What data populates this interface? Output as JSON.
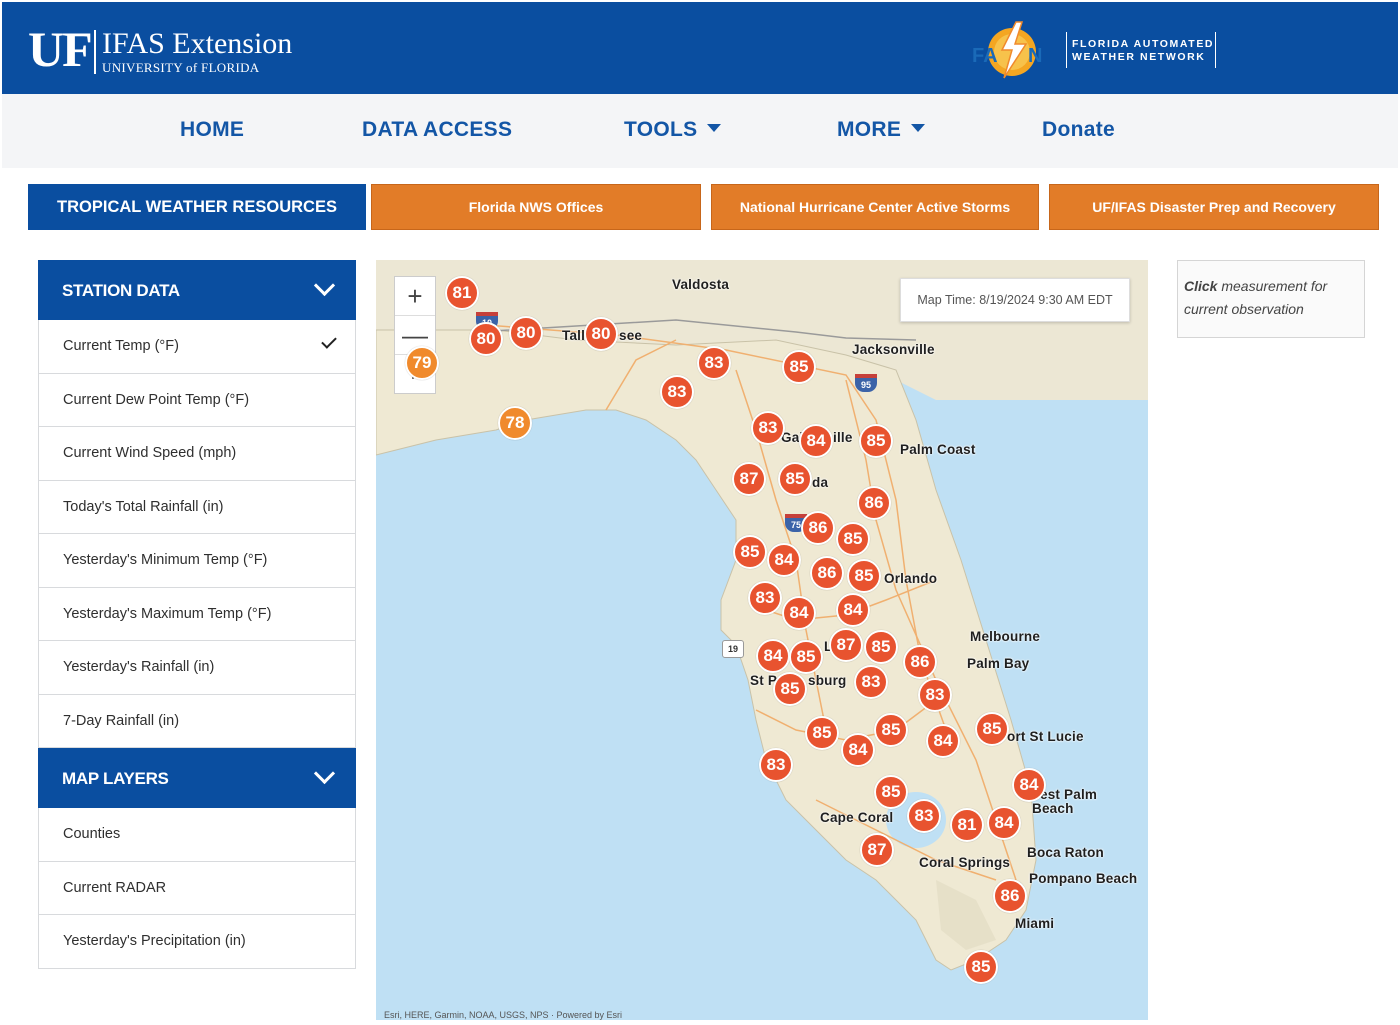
{
  "header": {
    "uf_logo": "UF",
    "org_title": "IFAS Extension",
    "org_subtitle": "UNIVERSITY of FLORIDA",
    "fawn_logo_text": "FAWN",
    "fawn_name_line1": "FLORIDA AUTOMATED",
    "fawn_name_line2": "WEATHER NETWORK",
    "brand_color": "#0a4ea0"
  },
  "nav": {
    "home": "HOME",
    "data_access": "DATA ACCESS",
    "tools": "TOOLS",
    "more": "MORE",
    "donate": "Donate"
  },
  "resources": {
    "tropical": "TROPICAL WEATHER RESOURCES",
    "nws": "Florida NWS Offices",
    "nhc": "National Hurricane Center Active Storms",
    "disaster": "UF/IFAS Disaster Prep and Recovery",
    "accent_color": "#e27c28"
  },
  "sidebar": {
    "station_data_title": "STATION DATA",
    "station_items": [
      "Current Temp (°F)",
      "Current Dew Point Temp (°F)",
      "Current Wind Speed (mph)",
      "Today's Total Rainfall (in)",
      "Yesterday's Minimum Temp (°F)",
      "Yesterday's Maximum Temp (°F)",
      "Yesterday's Rainfall (in)",
      "7-Day Rainfall (in)"
    ],
    "selected_item": "Current Temp (°F)",
    "map_layers_title": "MAP LAYERS",
    "layer_items": [
      "Counties",
      "Current RADAR",
      "Yesterday's Precipitation (in)"
    ]
  },
  "map": {
    "map_time": "Map Time: 8/19/2024 9:30 AM EDT",
    "zoom_in": "+",
    "zoom_out": "—",
    "pause": "II",
    "cities": [
      "Valdosta",
      "Tall",
      "see",
      "Jacksonville",
      "Palm Coast",
      "Gai",
      "ille",
      "da",
      "Orlando",
      "Melbourne",
      "Palm Bay",
      "L",
      "St P",
      "sburg",
      "ort St Lucie",
      "est Palm",
      "Beach",
      "Cape Coral",
      "Coral Springs",
      "Boca Raton",
      "Pompano Beach",
      "Miami"
    ],
    "highways": [
      "10",
      "95",
      "75",
      "19"
    ],
    "markers": [
      "81",
      "80",
      "80",
      "80",
      "79",
      "78",
      "83",
      "85",
      "83",
      "83",
      "84",
      "85",
      "87",
      "85",
      "86",
      "86",
      "85",
      "85",
      "84",
      "86",
      "85",
      "83",
      "84",
      "84",
      "84",
      "85",
      "87",
      "85",
      "86",
      "85",
      "83",
      "83",
      "85",
      "85",
      "84",
      "85",
      "84",
      "83",
      "85",
      "83",
      "81",
      "84",
      "84",
      "87",
      "86",
      "85"
    ],
    "marker_color": "#e8532f",
    "attribution": "Esri, HERE, Garmin, NOAA, USGS, NPS  ·  Powered by Esri"
  },
  "info": {
    "click_word": "Click",
    "rest": "measurement for current observation"
  }
}
